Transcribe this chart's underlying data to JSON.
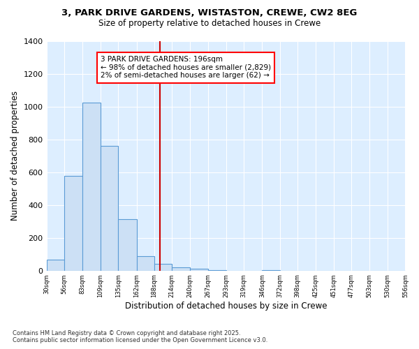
{
  "title_line1": "3, PARK DRIVE GARDENS, WISTASTON, CREWE, CW2 8EG",
  "title_line2": "Size of property relative to detached houses in Crewe",
  "xlabel": "Distribution of detached houses by size in Crewe",
  "ylabel": "Number of detached properties",
  "footnote_line1": "Contains HM Land Registry data © Crown copyright and database right 2025.",
  "footnote_line2": "Contains public sector information licensed under the Open Government Licence v3.0.",
  "annotation_line1": "3 PARK DRIVE GARDENS: 196sqm",
  "annotation_line2": "← 98% of detached houses are smaller (2,829)",
  "annotation_line3": "2% of semi-detached houses are larger (62) →",
  "marker_value": 196,
  "bin_edges": [
    30,
    56,
    83,
    109,
    135,
    162,
    188,
    214,
    240,
    267,
    293,
    319,
    346,
    372,
    398,
    425,
    451,
    477,
    503,
    530,
    556
  ],
  "bar_heights": [
    65,
    580,
    1025,
    760,
    315,
    90,
    40,
    20,
    10,
    5,
    0,
    0,
    5,
    0,
    0,
    0,
    0,
    0,
    0,
    0
  ],
  "bar_color": "#cce0f5",
  "bar_edge_color": "#5b9bd5",
  "marker_color": "#cc0000",
  "axes_bg_color": "#ddeeff",
  "fig_bg_color": "#ffffff",
  "grid_color": "#ffffff",
  "ylim": [
    0,
    1400
  ],
  "yticks": [
    0,
    200,
    400,
    600,
    800,
    1000,
    1200,
    1400
  ]
}
